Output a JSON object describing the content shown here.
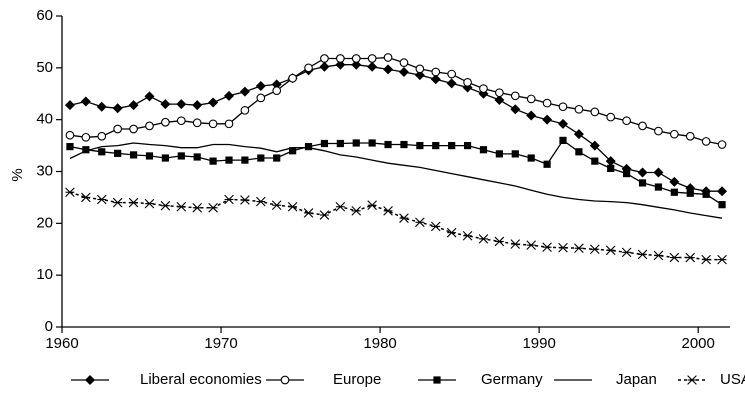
{
  "chart_data": {
    "type": "line",
    "title": "",
    "xlabel": "",
    "ylabel": "%",
    "xlim": [
      1960,
      2002
    ],
    "ylim": [
      0,
      60
    ],
    "x_ticks": [
      1960,
      1970,
      1980,
      1990,
      2000
    ],
    "x_tick_labels": [
      "1960",
      "1970",
      "1980",
      "1990",
      "2000"
    ],
    "y_ticks": [
      0,
      10,
      20,
      30,
      40,
      50,
      60
    ],
    "y_tick_labels": [
      "0",
      "10",
      "20",
      "30",
      "40",
      "50",
      "60"
    ],
    "grid": false,
    "legend_position": "bottom",
    "series": [
      {
        "name": "Liberal economies",
        "marker": "diamond-filled",
        "x": [
          1960.5,
          1961.5,
          1962.5,
          1963.5,
          1964.5,
          1965.5,
          1966.5,
          1967.5,
          1968.5,
          1969.5,
          1970.5,
          1971.5,
          1972.5,
          1973.5,
          1974.5,
          1975.5,
          1976.5,
          1977.5,
          1978.5,
          1979.5,
          1980.5,
          1981.5,
          1982.5,
          1983.5,
          1984.5,
          1985.5,
          1986.5,
          1987.5,
          1988.5,
          1989.5,
          1990.5,
          1991.5,
          1992.5,
          1993.5,
          1994.5,
          1995.5,
          1996.5,
          1997.5,
          1998.5,
          1999.5,
          2000.5,
          2001.5
        ],
        "values": [
          42.8,
          43.5,
          42.5,
          42.2,
          42.8,
          44.5,
          43.0,
          43.0,
          42.8,
          43.3,
          44.6,
          45.4,
          46.5,
          46.8,
          48.0,
          49.5,
          50.2,
          50.6,
          50.6,
          50.2,
          49.7,
          49.2,
          48.6,
          47.8,
          47.0,
          46.2,
          45.0,
          43.8,
          42.0,
          40.8,
          40.0,
          39.2,
          37.2,
          35.0,
          32.0,
          30.5,
          29.8,
          29.8,
          28.0,
          26.8,
          26.2,
          26.2
        ]
      },
      {
        "name": "Europe",
        "marker": "circle-open",
        "x": [
          1960.5,
          1961.5,
          1962.5,
          1963.5,
          1964.5,
          1965.5,
          1966.5,
          1967.5,
          1968.5,
          1969.5,
          1970.5,
          1971.5,
          1972.5,
          1973.5,
          1974.5,
          1975.5,
          1976.5,
          1977.5,
          1978.5,
          1979.5,
          1980.5,
          1981.5,
          1982.5,
          1983.5,
          1984.5,
          1985.5,
          1986.5,
          1987.5,
          1988.5,
          1989.5,
          1990.5,
          1991.5,
          1992.5,
          1993.5,
          1994.5,
          1995.5,
          1996.5,
          1997.5,
          1998.5,
          1999.5,
          2000.5,
          2001.5
        ],
        "values": [
          37.0,
          36.6,
          36.8,
          38.2,
          38.2,
          38.8,
          39.5,
          39.8,
          39.4,
          39.2,
          39.2,
          41.8,
          44.2,
          45.6,
          48.0,
          50.0,
          51.8,
          51.8,
          51.8,
          51.8,
          52.0,
          51.0,
          49.8,
          49.2,
          48.8,
          47.2,
          46.0,
          45.2,
          44.6,
          44.0,
          43.2,
          42.5,
          42.0,
          41.5,
          40.5,
          39.8,
          38.8,
          37.8,
          37.2,
          36.8,
          35.8,
          35.2
        ]
      },
      {
        "name": "Germany",
        "marker": "square-filled",
        "x": [
          1960.5,
          1961.5,
          1962.5,
          1963.5,
          1964.5,
          1965.5,
          1966.5,
          1967.5,
          1968.5,
          1969.5,
          1970.5,
          1971.5,
          1972.5,
          1973.5,
          1974.5,
          1975.5,
          1976.5,
          1977.5,
          1978.5,
          1979.5,
          1980.5,
          1981.5,
          1982.5,
          1983.5,
          1984.5,
          1985.5,
          1986.5,
          1987.5,
          1988.5,
          1989.5,
          1990.5,
          1991.5,
          1992.5,
          1993.5,
          1994.5,
          1995.5,
          1996.5,
          1997.5,
          1998.5,
          1999.5,
          2000.5,
          2001.5
        ],
        "values": [
          34.8,
          34.2,
          33.8,
          33.5,
          33.2,
          33.0,
          32.6,
          33.0,
          32.8,
          32.0,
          32.2,
          32.2,
          32.6,
          32.6,
          34.0,
          34.8,
          35.4,
          35.4,
          35.5,
          35.5,
          35.2,
          35.2,
          35.0,
          35.0,
          35.0,
          35.0,
          34.2,
          33.4,
          33.4,
          32.6,
          31.4,
          36.0,
          33.8,
          32.0,
          30.6,
          29.6,
          27.8,
          27.0,
          26.0,
          25.8,
          25.6,
          23.6
        ]
      },
      {
        "name": "Japan",
        "marker": "none",
        "x": [
          1960.5,
          1961.5,
          1962.5,
          1963.5,
          1964.5,
          1965.5,
          1966.5,
          1967.5,
          1968.5,
          1969.5,
          1970.5,
          1971.5,
          1972.5,
          1973.5,
          1974.5,
          1975.5,
          1976.5,
          1977.5,
          1978.5,
          1979.5,
          1980.5,
          1981.5,
          1982.5,
          1983.5,
          1984.5,
          1985.5,
          1986.5,
          1987.5,
          1988.5,
          1989.5,
          1990.5,
          1991.5,
          1992.5,
          1993.5,
          1994.5,
          1995.5,
          1996.5,
          1997.5,
          1998.5,
          1999.5,
          2000.5,
          2001.5
        ],
        "values": [
          32.5,
          34.0,
          34.8,
          35.0,
          35.5,
          35.2,
          35.0,
          34.6,
          34.6,
          35.2,
          35.2,
          34.8,
          34.5,
          33.8,
          34.6,
          34.6,
          34.0,
          33.2,
          32.8,
          32.2,
          31.6,
          31.2,
          30.8,
          30.2,
          29.6,
          29.0,
          28.4,
          27.8,
          27.2,
          26.4,
          25.6,
          25.0,
          24.6,
          24.3,
          24.2,
          24.0,
          23.6,
          23.1,
          22.6,
          22.0,
          21.5,
          21.0
        ]
      },
      {
        "name": "USA",
        "marker": "asterisk",
        "x": [
          1960.5,
          1961.5,
          1962.5,
          1963.5,
          1964.5,
          1965.5,
          1966.5,
          1967.5,
          1968.5,
          1969.5,
          1970.5,
          1971.5,
          1972.5,
          1973.5,
          1974.5,
          1975.5,
          1976.5,
          1977.5,
          1978.5,
          1979.5,
          1980.5,
          1981.5,
          1982.5,
          1983.5,
          1984.5,
          1985.5,
          1986.5,
          1987.5,
          1988.5,
          1989.5,
          1990.5,
          1991.5,
          1992.5,
          1993.5,
          1994.5,
          1995.5,
          1996.5,
          1997.5,
          1998.5,
          1999.5,
          2000.5,
          2001.5
        ],
        "values": [
          26.0,
          25.0,
          24.6,
          24.0,
          24.0,
          23.8,
          23.4,
          23.2,
          23.0,
          23.0,
          24.6,
          24.5,
          24.2,
          23.5,
          23.2,
          22.0,
          21.6,
          23.2,
          22.4,
          23.5,
          22.4,
          21.0,
          20.2,
          19.4,
          18.2,
          17.6,
          17.0,
          16.5,
          16.0,
          15.8,
          15.4,
          15.3,
          15.2,
          15.0,
          14.8,
          14.4,
          14.0,
          13.8,
          13.4,
          13.4,
          13.0,
          13.0
        ]
      }
    ]
  }
}
